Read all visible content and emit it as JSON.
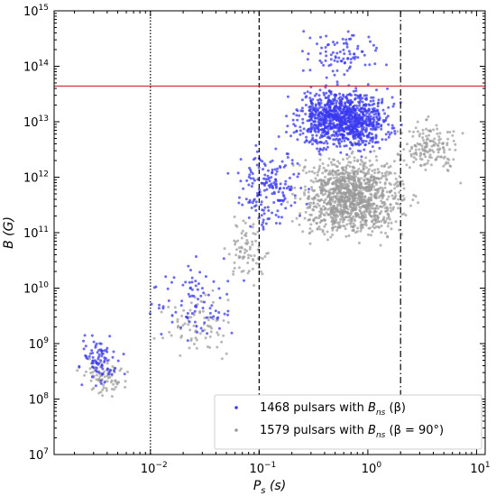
{
  "chart_data": {
    "type": "scatter",
    "xscale": "log",
    "yscale": "log",
    "xlim": [
      0.0013,
      12
    ],
    "ylim": [
      10000000.0,
      1000000000000000.0
    ],
    "xlabel": {
      "var": "P",
      "sub": "s",
      "unit": "(s)"
    },
    "ylabel": {
      "var": "B",
      "unit": "(G)"
    },
    "x_ticks": [
      {
        "value": 0.01,
        "base": "10",
        "exp": "−2"
      },
      {
        "value": 0.1,
        "base": "10",
        "exp": "−1"
      },
      {
        "value": 1,
        "base": "10",
        "exp": "0"
      },
      {
        "value": 10,
        "base": "10",
        "exp": "1"
      }
    ],
    "y_ticks": [
      {
        "value": 10000000.0,
        "base": "10",
        "exp": "7"
      },
      {
        "value": 100000000.0,
        "base": "10",
        "exp": "8"
      },
      {
        "value": 1000000000.0,
        "base": "10",
        "exp": "9"
      },
      {
        "value": 10000000000.0,
        "base": "10",
        "exp": "10"
      },
      {
        "value": 100000000000.0,
        "base": "10",
        "exp": "11"
      },
      {
        "value": 1000000000000.0,
        "base": "10",
        "exp": "12"
      },
      {
        "value": 10000000000000.0,
        "base": "10",
        "exp": "13"
      },
      {
        "value": 100000000000000.0,
        "base": "10",
        "exp": "14"
      },
      {
        "value": 1000000000000000.0,
        "base": "10",
        "exp": "15"
      }
    ],
    "reference_lines": [
      {
        "orientation": "vertical",
        "x": 0.01,
        "style": "dotted",
        "color": "#000000"
      },
      {
        "orientation": "vertical",
        "x": 0.1,
        "style": "dashed",
        "color": "#000000"
      },
      {
        "orientation": "vertical",
        "x": 2.0,
        "style": "dashdot",
        "color": "#000000"
      },
      {
        "orientation": "horizontal",
        "y": 44000000000000.0,
        "style": "solid",
        "color": "#cc2a2a"
      }
    ],
    "series": [
      {
        "name": {
          "prefix": "1468 pulsars with ",
          "var": "B",
          "sub": "ns",
          "suffix": " (β)"
        },
        "color": "#3a3af0",
        "count": 1468,
        "components": [
          {
            "weight": 0.06,
            "logx": [
              -2.75,
              -2.2
            ],
            "logy": [
              8.0,
              9.4
            ]
          },
          {
            "weight": 0.06,
            "logx": [
              -2.2,
              -1.0
            ],
            "logy": [
              8.7,
              10.8
            ]
          },
          {
            "weight": 0.12,
            "logx": [
              -1.4,
              -0.4
            ],
            "logy": [
              10.5,
              13.2
            ]
          },
          {
            "weight": 0.7,
            "logx": [
              -0.9,
              0.45
            ],
            "logy": [
              12.2,
              13.9
            ]
          },
          {
            "weight": 0.06,
            "logx": [
              -0.8,
              0.35
            ],
            "logy": [
              13.6,
              14.85
            ]
          }
        ]
      },
      {
        "name": {
          "prefix": "1579 pulsars with ",
          "var": "B",
          "sub": "ns",
          "suffix": " (β = 90°)"
        },
        "color": "#9a9a9a",
        "count": 1579,
        "components": [
          {
            "weight": 0.05,
            "logx": [
              -2.75,
              -2.1
            ],
            "logy": [
              7.85,
              8.9
            ]
          },
          {
            "weight": 0.05,
            "logx": [
              -2.1,
              -1.0
            ],
            "logy": [
              8.5,
              10.2
            ]
          },
          {
            "weight": 0.05,
            "logx": [
              -1.4,
              -0.8
            ],
            "logy": [
              9.8,
              11.5
            ]
          },
          {
            "weight": 0.75,
            "logx": [
              -0.9,
              0.6
            ],
            "logy": [
              10.5,
              12.8
            ]
          },
          {
            "weight": 0.1,
            "logx": [
              0.1,
              1.0
            ],
            "logy": [
              11.8,
              13.3
            ]
          }
        ]
      }
    ],
    "legend": {
      "position": "bottom-right"
    }
  }
}
